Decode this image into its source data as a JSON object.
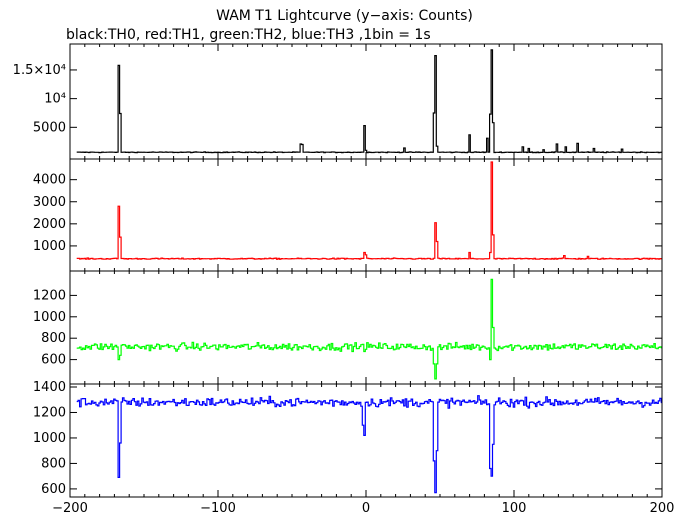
{
  "title": "WAM T1 Lightcurve (y−axis: Counts)",
  "subtitle": "black:TH0, red:TH1, green:TH2, blue:TH3 ,1bin = 1s",
  "chart_data": {
    "type": "line",
    "title": "WAM T1 Lightcurve (y−axis: Counts)",
    "subtitle": "black:TH0, red:TH1, green:TH2, blue:TH3 ,1bin = 1s",
    "xlim": [
      -200,
      200
    ],
    "x_ticks": [
      -200,
      -100,
      0,
      100,
      200
    ],
    "x_tick_labels": [
      "−200",
      "−100",
      "0",
      "100",
      "200"
    ],
    "bin_size_s": 1,
    "panels": [
      {
        "name": "TH0",
        "color": "#000000",
        "ylim": [
          0,
          19000
        ],
        "y_ticks": [
          5000,
          10000,
          15000
        ],
        "y_tick_labels": [
          "5000",
          "10⁴",
          "1.5×10⁴"
        ],
        "baseline": 650,
        "noise": 60,
        "features": [
          {
            "x": -167,
            "y": 15800
          },
          {
            "x": -166,
            "y": 7400
          },
          {
            "x": -44,
            "y": 2100
          },
          {
            "x": -43,
            "y": 2000
          },
          {
            "x": -1,
            "y": 5300
          },
          {
            "x": 0,
            "y": 1000
          },
          {
            "x": 26,
            "y": 1400
          },
          {
            "x": 46,
            "y": 7500
          },
          {
            "x": 47,
            "y": 17500
          },
          {
            "x": 48,
            "y": 1700
          },
          {
            "x": 70,
            "y": 3700
          },
          {
            "x": 82,
            "y": 3100
          },
          {
            "x": 84,
            "y": 7300
          },
          {
            "x": 85,
            "y": 18500
          },
          {
            "x": 86,
            "y": 5800
          },
          {
            "x": 106,
            "y": 1600
          },
          {
            "x": 110,
            "y": 1300
          },
          {
            "x": 120,
            "y": 1100
          },
          {
            "x": 129,
            "y": 2100
          },
          {
            "x": 135,
            "y": 1600
          },
          {
            "x": 143,
            "y": 2200
          },
          {
            "x": 154,
            "y": 1300
          },
          {
            "x": 173,
            "y": 1200
          }
        ]
      },
      {
        "name": "TH1",
        "color": "#ff0000",
        "ylim": [
          0,
          4800
        ],
        "y_ticks": [
          1000,
          2000,
          3000,
          4000
        ],
        "y_tick_labels": [
          "1000",
          "2000",
          "3000",
          "4000"
        ],
        "baseline": 420,
        "noise": 25,
        "features": [
          {
            "x": -167,
            "y": 2800
          },
          {
            "x": -166,
            "y": 1400
          },
          {
            "x": -1,
            "y": 700
          },
          {
            "x": 0,
            "y": 600
          },
          {
            "x": 47,
            "y": 2050
          },
          {
            "x": 48,
            "y": 1200
          },
          {
            "x": 70,
            "y": 700
          },
          {
            "x": 84,
            "y": 700
          },
          {
            "x": 85,
            "y": 4850
          },
          {
            "x": 86,
            "y": 1500
          },
          {
            "x": 134,
            "y": 560
          },
          {
            "x": 150,
            "y": 530
          }
        ]
      },
      {
        "name": "TH2",
        "color": "#00ff00",
        "ylim": [
          400,
          1400
        ],
        "y_ticks": [
          600,
          800,
          1000,
          1200
        ],
        "y_tick_labels": [
          "600",
          "800",
          "1000",
          "1200"
        ],
        "baseline": 720,
        "noise": 35,
        "features": [
          {
            "x": -167,
            "y": 600
          },
          {
            "x": -166,
            "y": 640
          },
          {
            "x": 46,
            "y": 560
          },
          {
            "x": 47,
            "y": 420
          },
          {
            "x": 48,
            "y": 560
          },
          {
            "x": 85,
            "y": 1350
          },
          {
            "x": 86,
            "y": 900
          },
          {
            "x": 84,
            "y": 600
          }
        ]
      },
      {
        "name": "TH3",
        "color": "#0000ff",
        "ylim": [
          560,
          1400
        ],
        "y_ticks": [
          600,
          800,
          1000,
          1200,
          1400
        ],
        "y_tick_labels": [
          "600",
          "800",
          "1000",
          "1200",
          "1400"
        ],
        "baseline": 1280,
        "noise": 35,
        "features": [
          {
            "x": -167,
            "y": 690
          },
          {
            "x": -166,
            "y": 960
          },
          {
            "x": -2,
            "y": 1100
          },
          {
            "x": -1,
            "y": 1020
          },
          {
            "x": 46,
            "y": 820
          },
          {
            "x": 47,
            "y": 570
          },
          {
            "x": 48,
            "y": 900
          },
          {
            "x": 84,
            "y": 760
          },
          {
            "x": 85,
            "y": 700
          },
          {
            "x": 86,
            "y": 950
          }
        ]
      }
    ]
  }
}
